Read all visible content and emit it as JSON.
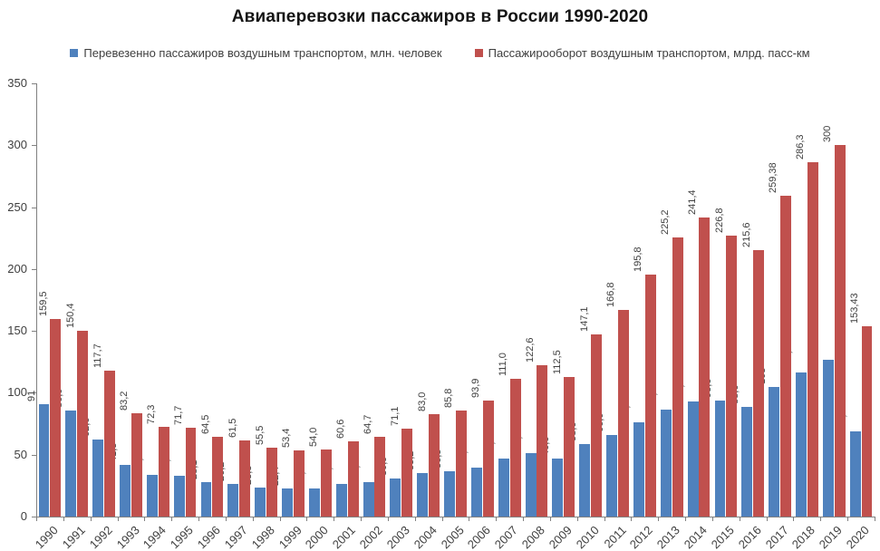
{
  "chart_data": {
    "type": "bar",
    "title": "Авиаперевозки пассажиров в России 1990-2020",
    "categories": [
      "1990",
      "1991",
      "1992",
      "1993",
      "1994",
      "1995",
      "1996",
      "1997",
      "1998",
      "1999",
      "2000",
      "2001",
      "2002",
      "2003",
      "2004",
      "2005",
      "2006",
      "2007",
      "2008",
      "2009",
      "2010",
      "2011",
      "2012",
      "2013",
      "2014",
      "2015",
      "2016",
      "2017",
      "2018",
      "2019",
      "2020"
    ],
    "series": [
      {
        "name": "Перевезенно пассажиров воздушным транспортом, млн. человек",
        "color": "#4f81bd",
        "values": [
          91,
          86.0,
          62.6,
          41.5,
          33.8,
          33.0,
          28.1,
          26.2,
          23.3,
          22.4,
          23.0,
          26.4,
          28.0,
          30.9,
          35.2,
          36.5,
          39.5,
          46.8,
          51.5,
          46.6,
          58.6,
          66.0,
          76.1,
          86.3,
          93.2,
          93.6,
          88.6,
          105,
          116.1,
          127,
          69.17
        ],
        "labels": [
          "91",
          "86,0",
          "62,6",
          "41,5",
          "33,8",
          "33,0",
          "28,1",
          "26,2",
          "23,3",
          "22,4",
          "23,0",
          "26,4",
          "28,0",
          "30,9",
          "35,2",
          "36,5",
          "39,5",
          "46,8",
          "51,5",
          "46,6",
          "58,6",
          "66,0",
          "76,1",
          "86,3",
          "93,2",
          "93,6",
          "88,6",
          "105",
          "116,1",
          "127",
          "69,17"
        ]
      },
      {
        "name": "Пассажирооборот воздушным транспортом, млрд. пасс-км",
        "color": "#c0504d",
        "values": [
          159.5,
          150.4,
          117.7,
          83.2,
          72.3,
          71.7,
          64.5,
          61.5,
          55.5,
          53.4,
          54.0,
          60.6,
          64.7,
          71.1,
          83.0,
          85.8,
          93.9,
          111.0,
          122.6,
          112.5,
          147.1,
          166.8,
          195.8,
          225.2,
          241.4,
          226.8,
          215.6,
          259.38,
          286.3,
          300,
          153.43
        ],
        "labels": [
          "159,5",
          "150,4",
          "117,7",
          "83,2",
          "72,3",
          "71,7",
          "64,5",
          "61,5",
          "55,5",
          "53,4",
          "54,0",
          "60,6",
          "64,7",
          "71,1",
          "83,0",
          "85,8",
          "93,9",
          "111,0",
          "122,6",
          "112,5",
          "147,1",
          "166,8",
          "195,8",
          "225,2",
          "241,4",
          "226,8",
          "215,6",
          "259,38",
          "286,3",
          "300",
          "153,43"
        ]
      }
    ],
    "ylim": [
      0,
      350
    ],
    "yticks": [
      0,
      50,
      100,
      150,
      200,
      250,
      300,
      350
    ],
    "grid": false,
    "legend_position": "top",
    "axis_color": "#808080",
    "label_color": "#3f3f3f"
  }
}
